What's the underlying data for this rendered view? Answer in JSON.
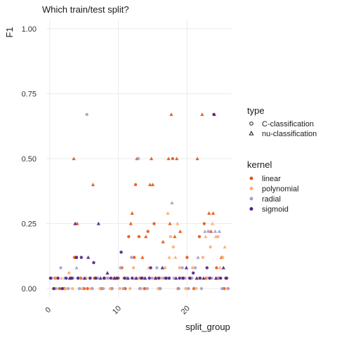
{
  "chart_data": {
    "type": "scatter",
    "title": "Which train/test split?",
    "xlabel": "split_group",
    "ylabel": "F1",
    "xlim": [
      -0.5,
      26.5
    ],
    "ylim": [
      -0.035,
      1.035
    ],
    "x_ticks": [
      0,
      10,
      20
    ],
    "x_tick_labels": [
      "0",
      "10",
      "20"
    ],
    "y_ticks": [
      0,
      0.25,
      0.5,
      0.75,
      1.0
    ],
    "y_tick_labels": [
      "0.00",
      "0.25",
      "0.50",
      "0.75",
      "1.00"
    ],
    "grid": true,
    "legend_position": "right",
    "shape_legend": {
      "title": "type",
      "entries": [
        {
          "label": "C-classification",
          "shape": "circle"
        },
        {
          "label": "nu-classification",
          "shape": "triangle"
        }
      ]
    },
    "color_legend": {
      "title": "kernel",
      "entries": [
        {
          "label": "linear",
          "color": "#e6550d"
        },
        {
          "label": "polynomial",
          "color": "#fdae6b"
        },
        {
          "label": "radial",
          "color": "#a49dcc"
        },
        {
          "label": "sigmoid",
          "color": "#4a1f86"
        }
      ]
    },
    "series": [
      {
        "name": "linear",
        "color": "#e6550d",
        "points": [
          [
            0.2,
            0.04,
            "c"
          ],
          [
            0.8,
            0.04,
            "c"
          ],
          [
            1.4,
            0.0,
            "c"
          ],
          [
            2.1,
            0.0,
            "c"
          ],
          [
            3.0,
            0.04,
            "c"
          ],
          [
            3.5,
            0.5,
            "t"
          ],
          [
            3.6,
            0.12,
            "c"
          ],
          [
            3.8,
            0.12,
            "t"
          ],
          [
            4.0,
            0.25,
            "t"
          ],
          [
            4.5,
            0.04,
            "c"
          ],
          [
            5.0,
            0.0,
            "c"
          ],
          [
            5.5,
            0.0,
            "c"
          ],
          [
            6.3,
            0.4,
            "t"
          ],
          [
            6.5,
            0.04,
            "c"
          ],
          [
            7.5,
            0.0,
            "c"
          ],
          [
            8.0,
            0.04,
            "c"
          ],
          [
            9.0,
            0.0,
            "c"
          ],
          [
            9.5,
            0.04,
            "t"
          ],
          [
            10.0,
            0.04,
            "c"
          ],
          [
            10.5,
            0.08,
            "c"
          ],
          [
            11.0,
            0.0,
            "c"
          ],
          [
            11.5,
            0.2,
            "c"
          ],
          [
            11.8,
            0.25,
            "t"
          ],
          [
            12.0,
            0.29,
            "t"
          ],
          [
            12.3,
            0.12,
            "c"
          ],
          [
            12.5,
            0.4,
            "c"
          ],
          [
            12.7,
            0.5,
            "t"
          ],
          [
            13.0,
            0.2,
            "c"
          ],
          [
            13.2,
            0.04,
            "c"
          ],
          [
            13.5,
            0.12,
            "t"
          ],
          [
            13.8,
            0.0,
            "c"
          ],
          [
            14.0,
            0.2,
            "t"
          ],
          [
            14.3,
            0.22,
            "c"
          ],
          [
            14.6,
            0.4,
            "t"
          ],
          [
            14.8,
            0.5,
            "t"
          ],
          [
            15.0,
            0.4,
            "t"
          ],
          [
            15.2,
            0.25,
            "c"
          ],
          [
            15.5,
            0.04,
            "c"
          ],
          [
            16.0,
            0.0,
            "c"
          ],
          [
            16.5,
            0.18,
            "t"
          ],
          [
            17.0,
            0.04,
            "c"
          ],
          [
            17.3,
            0.5,
            "t"
          ],
          [
            17.5,
            0.25,
            "t"
          ],
          [
            17.7,
            0.67,
            "t"
          ],
          [
            17.9,
            0.5,
            "c"
          ],
          [
            18.2,
            0.2,
            "t"
          ],
          [
            18.5,
            0.5,
            "t"
          ],
          [
            18.7,
            0.0,
            "c"
          ],
          [
            19.0,
            0.22,
            "t"
          ],
          [
            19.5,
            0.04,
            "c"
          ],
          [
            20.0,
            0.12,
            "c"
          ],
          [
            20.5,
            0.04,
            "t"
          ],
          [
            21.0,
            0.0,
            "c"
          ],
          [
            21.5,
            0.5,
            "t"
          ],
          [
            21.8,
            0.2,
            "c"
          ],
          [
            22.2,
            0.67,
            "t"
          ],
          [
            22.5,
            0.25,
            "c"
          ],
          [
            22.8,
            0.04,
            "c"
          ],
          [
            23.2,
            0.29,
            "t"
          ],
          [
            23.5,
            0.22,
            "t"
          ],
          [
            23.8,
            0.29,
            "t"
          ],
          [
            24.0,
            0.67,
            "t"
          ],
          [
            24.3,
            0.08,
            "c"
          ],
          [
            24.6,
            0.04,
            "c"
          ],
          [
            25.0,
            0.12,
            "t"
          ],
          [
            25.4,
            0.0,
            "c"
          ],
          [
            25.8,
            0.04,
            "c"
          ]
        ]
      },
      {
        "name": "polynomial",
        "color": "#fdae6b",
        "points": [
          [
            0.5,
            0.0,
            "c"
          ],
          [
            1.0,
            0.04,
            "c"
          ],
          [
            1.7,
            0.04,
            "t"
          ],
          [
            2.3,
            0.0,
            "c"
          ],
          [
            2.8,
            0.06,
            "c"
          ],
          [
            3.3,
            0.0,
            "c"
          ],
          [
            4.2,
            0.04,
            "c"
          ],
          [
            4.7,
            0.0,
            "c"
          ],
          [
            5.3,
            0.04,
            "c"
          ],
          [
            6.0,
            0.0,
            "c"
          ],
          [
            6.8,
            0.04,
            "c"
          ],
          [
            7.3,
            0.0,
            "c"
          ],
          [
            8.3,
            0.04,
            "c"
          ],
          [
            8.8,
            0.0,
            "c"
          ],
          [
            9.3,
            0.04,
            "c"
          ],
          [
            10.2,
            0.0,
            "c"
          ],
          [
            10.8,
            0.04,
            "c"
          ],
          [
            11.3,
            0.04,
            "t"
          ],
          [
            11.7,
            0.0,
            "c"
          ],
          [
            12.2,
            0.08,
            "c"
          ],
          [
            12.8,
            0.04,
            "c"
          ],
          [
            13.3,
            0.0,
            "c"
          ],
          [
            13.7,
            0.04,
            "c"
          ],
          [
            14.4,
            0.08,
            "t"
          ],
          [
            15.3,
            0.04,
            "c"
          ],
          [
            15.8,
            0.0,
            "c"
          ],
          [
            16.3,
            0.04,
            "c"
          ],
          [
            16.8,
            0.08,
            "c"
          ],
          [
            17.2,
            0.29,
            "t"
          ],
          [
            17.4,
            0.12,
            "t"
          ],
          [
            17.6,
            0.2,
            "c"
          ],
          [
            18.0,
            0.16,
            "c"
          ],
          [
            18.3,
            0.12,
            "t"
          ],
          [
            18.6,
            0.25,
            "t"
          ],
          [
            18.9,
            0.08,
            "c"
          ],
          [
            19.2,
            0.04,
            "c"
          ],
          [
            19.8,
            0.0,
            "c"
          ],
          [
            20.3,
            0.04,
            "c"
          ],
          [
            20.8,
            0.08,
            "c"
          ],
          [
            21.3,
            0.0,
            "c"
          ],
          [
            21.7,
            0.04,
            "c"
          ],
          [
            22.3,
            0.12,
            "c"
          ],
          [
            22.7,
            0.2,
            "t"
          ],
          [
            23.0,
            0.04,
            "c"
          ],
          [
            23.4,
            0.16,
            "c"
          ],
          [
            23.7,
            0.25,
            "t"
          ],
          [
            24.2,
            0.2,
            "t"
          ],
          [
            24.5,
            0.2,
            "c"
          ],
          [
            24.8,
            0.08,
            "t"
          ],
          [
            25.2,
            0.12,
            "c"
          ],
          [
            25.5,
            0.16,
            "t"
          ],
          [
            25.9,
            0.0,
            "c"
          ]
        ]
      },
      {
        "name": "radial",
        "color": "#a49dcc",
        "points": [
          [
            0.3,
            0.04,
            "c"
          ],
          [
            0.9,
            0.0,
            "c"
          ],
          [
            1.6,
            0.08,
            "c"
          ],
          [
            2.2,
            0.04,
            "c"
          ],
          [
            2.7,
            0.0,
            "c"
          ],
          [
            3.4,
            0.04,
            "c"
          ],
          [
            3.9,
            0.08,
            "t"
          ],
          [
            4.3,
            0.0,
            "c"
          ],
          [
            4.9,
            0.04,
            "t"
          ],
          [
            5.4,
            0.67,
            "c"
          ],
          [
            5.8,
            0.04,
            "c"
          ],
          [
            6.2,
            0.0,
            "c"
          ],
          [
            7.0,
            0.04,
            "c"
          ],
          [
            7.8,
            0.0,
            "c"
          ],
          [
            8.5,
            0.04,
            "c"
          ],
          [
            9.1,
            0.0,
            "c"
          ],
          [
            9.7,
            0.04,
            "c"
          ],
          [
            10.3,
            0.08,
            "c"
          ],
          [
            10.7,
            0.0,
            "c"
          ],
          [
            11.2,
            0.04,
            "c"
          ],
          [
            11.9,
            0.12,
            "c"
          ],
          [
            12.4,
            0.04,
            "t"
          ],
          [
            12.9,
            0.5,
            "c"
          ],
          [
            13.1,
            0.0,
            "c"
          ],
          [
            13.6,
            0.04,
            "c"
          ],
          [
            14.2,
            0.0,
            "c"
          ],
          [
            14.9,
            0.04,
            "c"
          ],
          [
            15.6,
            0.08,
            "c"
          ],
          [
            16.1,
            0.0,
            "c"
          ],
          [
            16.6,
            0.04,
            "c"
          ],
          [
            17.1,
            0.04,
            "t"
          ],
          [
            17.8,
            0.33,
            "t"
          ],
          [
            18.1,
            0.04,
            "c"
          ],
          [
            18.8,
            0.0,
            "c"
          ],
          [
            19.3,
            0.08,
            "c"
          ],
          [
            19.7,
            0.04,
            "c"
          ],
          [
            20.2,
            0.0,
            "c"
          ],
          [
            20.7,
            0.04,
            "c"
          ],
          [
            21.2,
            0.08,
            "c"
          ],
          [
            21.6,
            0.12,
            "t"
          ],
          [
            22.1,
            0.0,
            "c"
          ],
          [
            22.6,
            0.22,
            "t"
          ],
          [
            23.1,
            0.22,
            "c"
          ],
          [
            23.6,
            0.04,
            "c"
          ],
          [
            24.1,
            0.22,
            "t"
          ],
          [
            24.4,
            0.04,
            "c"
          ],
          [
            24.7,
            0.22,
            "t"
          ],
          [
            25.1,
            0.0,
            "c"
          ],
          [
            25.6,
            0.04,
            "c"
          ],
          [
            26.0,
            0.0,
            "c"
          ]
        ]
      },
      {
        "name": "sigmoid",
        "color": "#4a1f86",
        "points": [
          [
            0.1,
            0.04,
            "c"
          ],
          [
            0.6,
            0.0,
            "c"
          ],
          [
            1.2,
            0.04,
            "c"
          ],
          [
            1.8,
            0.0,
            "c"
          ],
          [
            2.4,
            0.04,
            "c"
          ],
          [
            2.9,
            0.04,
            "t"
          ],
          [
            3.2,
            0.04,
            "c"
          ],
          [
            3.7,
            0.25,
            "t"
          ],
          [
            3.9,
            0.12,
            "c"
          ],
          [
            4.1,
            0.04,
            "c"
          ],
          [
            4.6,
            0.12,
            "c"
          ],
          [
            5.1,
            0.04,
            "t"
          ],
          [
            5.6,
            0.12,
            "t"
          ],
          [
            5.9,
            0.04,
            "c"
          ],
          [
            6.4,
            0.1,
            "c"
          ],
          [
            6.7,
            0.04,
            "c"
          ],
          [
            7.1,
            0.25,
            "t"
          ],
          [
            7.4,
            0.04,
            "t"
          ],
          [
            7.9,
            0.04,
            "c"
          ],
          [
            8.4,
            0.06,
            "t"
          ],
          [
            8.9,
            0.04,
            "c"
          ],
          [
            9.4,
            0.04,
            "t"
          ],
          [
            9.8,
            0.04,
            "c"
          ],
          [
            10.4,
            0.14,
            "c"
          ],
          [
            10.9,
            0.04,
            "c"
          ],
          [
            11.4,
            0.04,
            "t"
          ],
          [
            12.0,
            0.04,
            "c"
          ],
          [
            12.6,
            0.04,
            "t"
          ],
          [
            13.4,
            0.04,
            "c"
          ],
          [
            13.9,
            0.04,
            "t"
          ],
          [
            14.5,
            0.04,
            "c"
          ],
          [
            14.7,
            0.08,
            "c"
          ],
          [
            15.4,
            0.04,
            "t"
          ],
          [
            15.9,
            0.04,
            "c"
          ],
          [
            16.4,
            0.08,
            "t"
          ],
          [
            16.9,
            0.04,
            "c"
          ],
          [
            17.4,
            0.04,
            "c"
          ],
          [
            18.4,
            0.04,
            "t"
          ],
          [
            18.9,
            0.04,
            "c"
          ],
          [
            19.4,
            0.04,
            "c"
          ],
          [
            19.9,
            0.08,
            "t"
          ],
          [
            20.4,
            0.04,
            "c"
          ],
          [
            20.9,
            0.06,
            "c"
          ],
          [
            21.4,
            0.04,
            "t"
          ],
          [
            21.9,
            0.04,
            "c"
          ],
          [
            22.4,
            0.04,
            "t"
          ],
          [
            22.9,
            0.08,
            "c"
          ],
          [
            23.3,
            0.04,
            "c"
          ],
          [
            23.9,
            0.67,
            "c"
          ],
          [
            24.2,
            0.04,
            "t"
          ],
          [
            24.9,
            0.04,
            "c"
          ],
          [
            25.3,
            0.08,
            "t"
          ],
          [
            25.7,
            0.04,
            "c"
          ]
        ]
      }
    ]
  }
}
